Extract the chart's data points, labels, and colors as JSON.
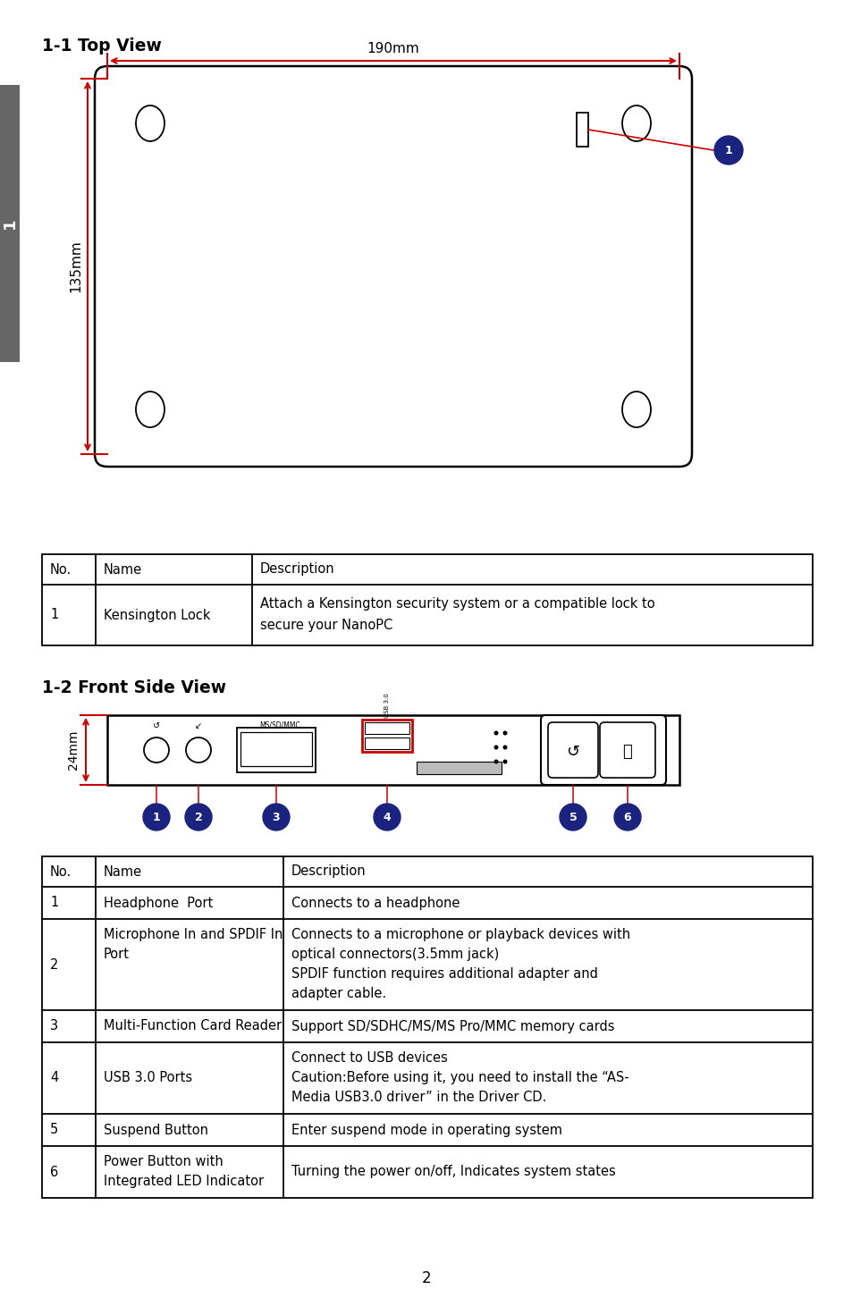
{
  "title1": "1-1 Top View",
  "title2": "1-2 Front Side View",
  "dim_w": "190mm",
  "dim_h": "135mm",
  "dim_front": "24mm",
  "bg": "#ffffff",
  "red": "#cc0000",
  "black": "#000000",
  "navy": "#1a237e",
  "gray_tab": "#666666",
  "table1_headers": [
    "No.",
    "Name",
    "Description"
  ],
  "table1_data": [
    [
      "1",
      "Kensington Lock",
      "Attach a Kensington security system or a compatible lock to\nsecure your NanoPC"
    ]
  ],
  "table2_headers": [
    "No.",
    "Name",
    "Description"
  ],
  "table2_data": [
    [
      "1",
      "Headphone  Port",
      "Connects to a headphone"
    ],
    [
      "2",
      "Microphone In and SPDIF In\nPort",
      "Connects to a microphone or playback devices with\noptical connectors(3.5mm jack)\nSPDIF function requires additional adapter and\nadapter cable."
    ],
    [
      "3",
      "Multi-Function Card Reader",
      "Support SD/SDHC/MS/MS Pro/MMC memory cards"
    ],
    [
      "4",
      "USB 3.0 Ports",
      "Connect to USB devices\nCaution:Before using it, you need to install the “AS-\nMedia USB3.0 driver” in the Driver CD."
    ],
    [
      "5",
      "Suspend Button",
      "Enter suspend mode in operating system"
    ],
    [
      "6",
      "Power Button with\nIntegrated LED Indicator",
      "Turning the power on/off, Indicates system states"
    ]
  ],
  "page": "2"
}
